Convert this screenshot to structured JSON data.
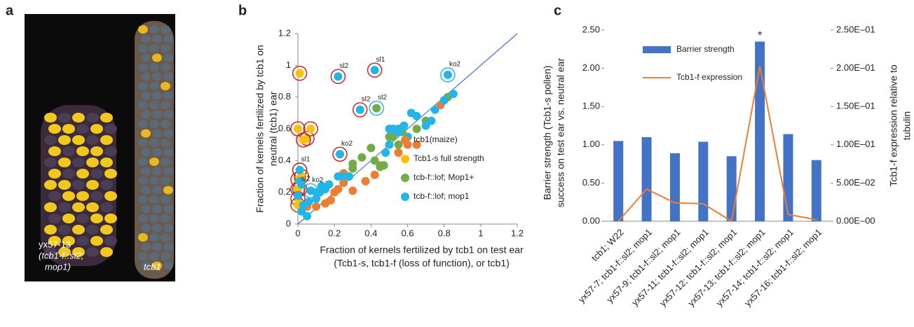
{
  "panel_labels": [
    "a",
    "b",
    "c"
  ],
  "photo": {
    "labels": [
      "yx57-13",
      "(tcb1-f::sl2;",
      "mop1)",
      "tcb1"
    ]
  },
  "chart_data": [
    {
      "type": "scatter",
      "xlabel": [
        "Fraction of kernels fertilized by tcb1 on test ear",
        "(Tcb1-s, tcb1-f (loss of function), or tcb1)"
      ],
      "ylabel": [
        "Fraction of kernels fertilized by tcb1 on",
        "neutral (tcb1) ear"
      ],
      "xlim": [
        0,
        1.2
      ],
      "ylim": [
        0,
        1.2
      ],
      "xticks": [
        0,
        0.2,
        0.4,
        0.6,
        0.8,
        1,
        1.2
      ],
      "yticks": [
        0,
        0.2,
        0.4,
        0.6,
        0.8,
        1,
        1.2
      ],
      "legend": "lower right",
      "diagonal_color": "#4472c4",
      "series": [
        {
          "name": "tcb1(maize)",
          "color": "#ed7d31",
          "x": [
            0.05,
            0.1,
            0.15,
            0.18,
            0.2,
            0.22,
            0.25,
            0.3,
            0.37,
            0.42,
            0.45,
            0.55,
            0.6,
            0.65,
            0.78,
            0.25
          ],
          "y": [
            0.11,
            0.11,
            0.13,
            0.15,
            0.2,
            0.22,
            0.26,
            0.21,
            0.27,
            0.31,
            0.37,
            0.45,
            0.5,
            0.5,
            0.75,
            0.32
          ]
        },
        {
          "name": "Tcb1-s full strength",
          "color": "#ffc000",
          "ring": "#c0282d",
          "x": [
            0.01,
            0,
            0.05,
            0.07,
            0.03,
            0.01,
            0,
            0,
            0,
            0,
            0.02
          ],
          "y": [
            0.95,
            0.6,
            0.54,
            0.6,
            0.53,
            0.34,
            0.28,
            0.22,
            0.16,
            0.12,
            0.3
          ]
        },
        {
          "name": "tcb-f::lof; Mop1+",
          "color": "#70ad47",
          "x": [
            0.3,
            0.35,
            0.4,
            0.42,
            0.45,
            0.47,
            0.5,
            0.52,
            0.55,
            0.57,
            0.6,
            0.65,
            0.7,
            0.8,
            0.82,
            0.43,
            0.3
          ],
          "y": [
            0.38,
            0.42,
            0.48,
            0.4,
            0.36,
            0.37,
            0.55,
            0.55,
            0.5,
            0.58,
            0.55,
            0.6,
            0.65,
            0.78,
            0.8,
            0.73,
            0.35
          ]
        },
        {
          "name": "tcb-f::lof; mop1",
          "color": "#21b5ea",
          "x": [
            0.01,
            0.01,
            0.02,
            0,
            0.03,
            0.02,
            0.05,
            0.1,
            0.12,
            0.15,
            0.17,
            0.1,
            0.22,
            0.25,
            0.28,
            0.22,
            0.42,
            0.34,
            0.23,
            0.5,
            0.52,
            0.55,
            0.58,
            0.62,
            0.65,
            0.7,
            0.73,
            0.75,
            0.8,
            0.82,
            0.85,
            0.55,
            0.6,
            0.5,
            0.48,
            0.13,
            0.07,
            0.06
          ],
          "y": [
            0.34,
            0.27,
            0.25,
            0.18,
            0.12,
            0.08,
            0.05,
            0.16,
            0.2,
            0.22,
            0.25,
            0.2,
            0.3,
            0.3,
            0.3,
            0.93,
            0.97,
            0.72,
            0.44,
            0.6,
            0.6,
            0.6,
            0.62,
            0.7,
            0.68,
            0.62,
            0.65,
            0.72,
            0.78,
            0.94,
            0.82,
            0.58,
            0.55,
            0.5,
            0.45,
            0.24,
            0.21,
            0.14
          ]
        }
      ],
      "annotations": [
        {
          "text": "sl2",
          "x": 0.22,
          "y": 0.93,
          "ring": "#c0282d"
        },
        {
          "text": "sl1",
          "x": 0.42,
          "y": 0.97,
          "ring": "#c0282d"
        },
        {
          "text": "sl2",
          "x": 0.34,
          "y": 0.72,
          "ring": "#c0282d"
        },
        {
          "text": "sl2",
          "x": 0.43,
          "y": 0.73,
          "ring": "#21b5ea"
        },
        {
          "text": "ko2",
          "x": 0.82,
          "y": 0.94,
          "ring": "#21b5ea"
        },
        {
          "text": "ko2",
          "x": 0.23,
          "y": 0.44,
          "ring": "#c0282d"
        },
        {
          "text": "sl1",
          "x": 0.01,
          "y": 0.34,
          "ring": "#c0282d"
        },
        {
          "text": "ko2",
          "x": 0.07,
          "y": 0.21,
          "ring": "#21b5ea"
        },
        {
          "text": "sl2",
          "x": 0.01,
          "y": 0.22,
          "ring": "#c0282d"
        }
      ]
    },
    {
      "type": "bar",
      "categories": [
        "tcb1; W22",
        "yx57-7; tcb1-f::sl2; mop1",
        "yx57-9; tcb1-f::sl2; mop1",
        "yx57-11; tcb1-f::sl2; mop1",
        "yx57-12; tcb1-f::sl2; mop1",
        "yx57-13; tcb1-f::sl2; mop1",
        "yx57-14; tcb1-f::sl2; mop1",
        "yx57-16; tcb1-f::sl2; mop1"
      ],
      "ylabel": [
        "Barrier strength (Tcb1-s pollen)",
        "success on test ear vs. neutral ear"
      ],
      "y2label": [
        "Tcb1-f expression relative to",
        "tubulin"
      ],
      "ylim": [
        0,
        2.5
      ],
      "yticks": [
        {
          "value": 0,
          "label": "0.00"
        },
        {
          "value": 0.5,
          "label": "0.50"
        },
        {
          "value": 1,
          "label": "1.00"
        },
        {
          "value": 1.5,
          "label": "1.50"
        },
        {
          "value": 2,
          "label": "2.00"
        },
        {
          "value": 2.5,
          "label": "2.50"
        }
      ],
      "y2lim": [
        0,
        0.25
      ],
      "y2ticks": [
        {
          "value": 0,
          "label": "0.00E–00"
        },
        {
          "value": 0.05,
          "label": "5.00E–02"
        },
        {
          "value": 0.1,
          "label": "1.00E–01"
        },
        {
          "value": 0.15,
          "label": "1.50E–01"
        },
        {
          "value": 0.2,
          "label": "2.00E–01"
        },
        {
          "value": 0.25,
          "label": "2.50E–01"
        }
      ],
      "legend": "upper left",
      "series": [
        {
          "name": "Barrier strength",
          "type": "bar",
          "color": "#4472c4",
          "values": [
            1.05,
            1.1,
            0.89,
            1.04,
            0.85,
            2.35,
            1.14,
            0.8
          ],
          "value_labels": [
            null,
            null,
            null,
            null,
            null,
            "*",
            null,
            null
          ]
        },
        {
          "name": "Tcb1-f expression",
          "type": "line",
          "axis": "y2",
          "color": "#ed7d31",
          "values": [
            0,
            0.042,
            0.024,
            0.023,
            0,
            0.203,
            0.009,
            0.002
          ]
        }
      ]
    }
  ]
}
